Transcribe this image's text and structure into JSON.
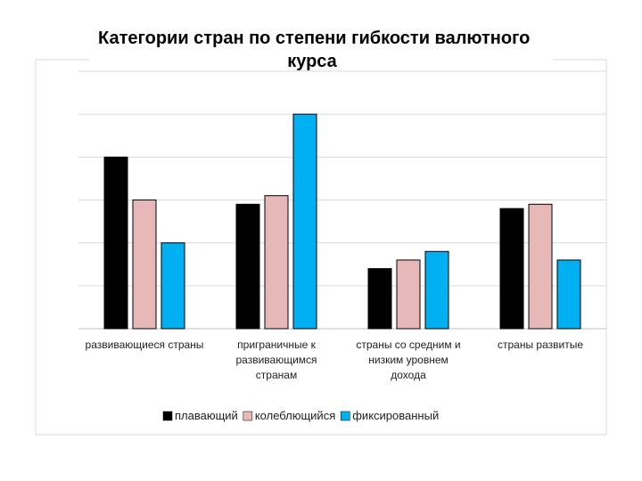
{
  "chart_data": {
    "type": "bar",
    "title_lines": [
      "Категории стран по степени гибкости валютного",
      "курса"
    ],
    "categories": [
      [
        "развивающиеся страны"
      ],
      [
        "приграничные к",
        "развивающимся",
        "странам"
      ],
      [
        "страны со средним и",
        "низким уровнем",
        "дохода"
      ],
      [
        "страны развитые"
      ]
    ],
    "series": [
      {
        "name": "плавающий",
        "color": "#000000",
        "values": [
          40,
          29,
          14,
          28
        ]
      },
      {
        "name": "колеблющийся",
        "color": "#e6b8b7",
        "values": [
          30,
          31,
          16,
          29
        ]
      },
      {
        "name": "фиксированный",
        "color": "#00b0f0",
        "values": [
          20,
          50,
          18,
          16
        ]
      }
    ],
    "ylim": [
      0,
      60
    ],
    "y_gridlines": [
      10,
      20,
      30,
      40,
      50,
      60
    ],
    "y_tick_labels_shown": false,
    "legend_position": "bottom"
  }
}
